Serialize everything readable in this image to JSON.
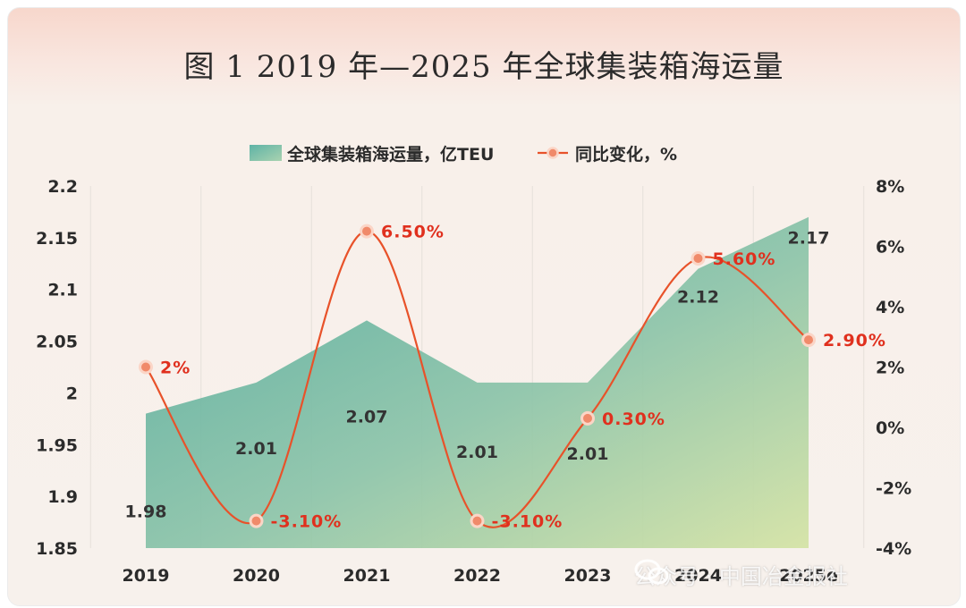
{
  "title": "图 1 2019 年—2025 年全球集装箱海运量",
  "watermark": "公众号 · 中国冶金报社",
  "colors": {
    "area_left": "#5eb3a6",
    "area_right": "#cfe2a8",
    "line": "#e8522a",
    "marker": "#f08a6a",
    "label_red": "#e0301e",
    "axis_text": "#2b2b2b"
  },
  "chart_data": {
    "type": "area+line",
    "categories": [
      "2019",
      "2020",
      "2021",
      "2022",
      "2023",
      "2024",
      "2025e"
    ],
    "series": [
      {
        "name": "全球集装箱海运量，亿TEU",
        "axis": "left",
        "type": "area",
        "values": [
          1.98,
          2.01,
          2.07,
          2.01,
          2.01,
          2.12,
          2.17
        ],
        "labels": [
          "1.98",
          "2.01",
          "2.07",
          "2.01",
          "2.01",
          "2.12",
          "2.17"
        ]
      },
      {
        "name": "同比变化，%",
        "axis": "right",
        "type": "line",
        "values": [
          2,
          -3.1,
          6.5,
          -3.1,
          0.3,
          5.6,
          2.9
        ],
        "labels": [
          "2%",
          "-3.10%",
          "6.50%",
          "-3.10%",
          "0.30%",
          "5.60%",
          "2.90%"
        ]
      }
    ],
    "y_left": {
      "min": 1.85,
      "max": 2.2,
      "ticks": [
        "1.85",
        "1.9",
        "1.95",
        "2",
        "2.05",
        "2.1",
        "2.15",
        "2.2"
      ]
    },
    "y_right": {
      "min": -4,
      "max": 8,
      "ticks": [
        "-4%",
        "-2%",
        "0%",
        "2%",
        "4%",
        "6%",
        "8%"
      ]
    },
    "grid": "vertical",
    "legend": "top-center"
  }
}
